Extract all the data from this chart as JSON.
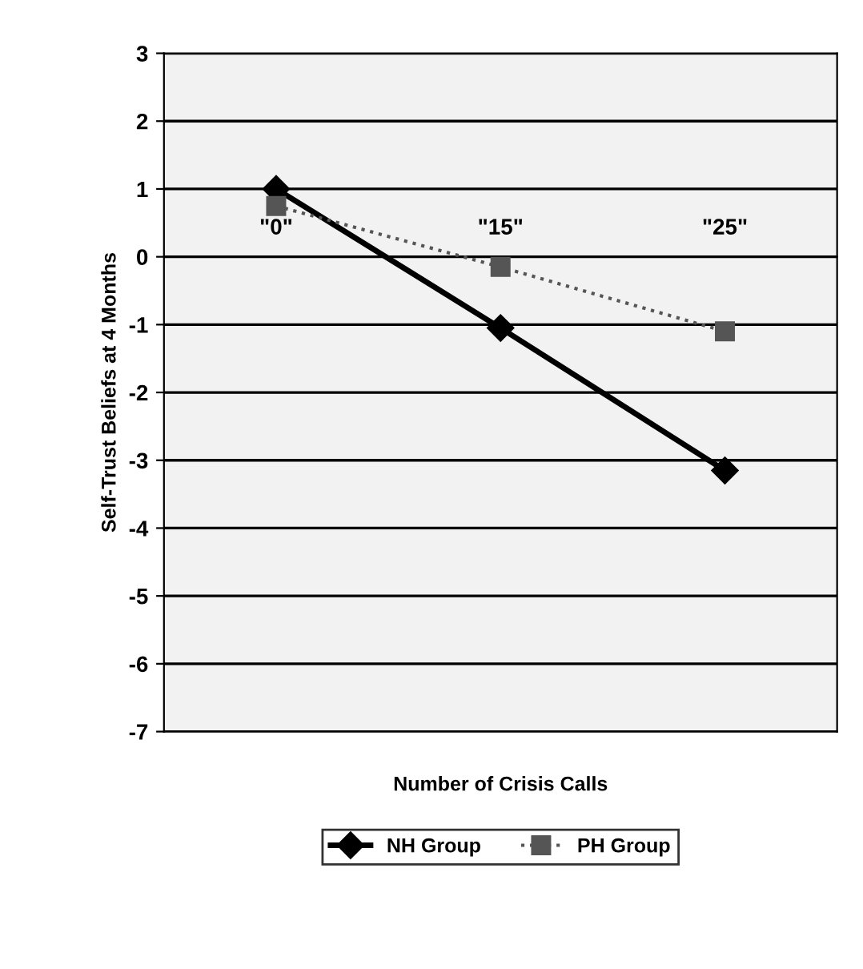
{
  "chart_data": {
    "type": "line",
    "xlabel": "Number of Crisis Calls",
    "ylabel": "Self-Trust Beliefs at 4 Months",
    "categories": [
      "\"0\"",
      "\"15\"",
      "\"25\""
    ],
    "series": [
      {
        "name": "NH Group",
        "color": "#000000",
        "values": [
          1.0,
          -1.05,
          -3.15
        ],
        "marker": "diamond",
        "line_style": "solid"
      },
      {
        "name": "PH Group",
        "color": "#555555",
        "values": [
          0.75,
          -0.15,
          -1.1
        ],
        "marker": "square",
        "line_style": "dotted"
      }
    ],
    "ylim": [
      -7,
      3
    ],
    "yticks": [
      -7,
      -6,
      -5,
      -4,
      -3,
      -2,
      -1,
      0,
      1,
      2,
      3
    ],
    "grid": "y",
    "legend": "bottom"
  }
}
